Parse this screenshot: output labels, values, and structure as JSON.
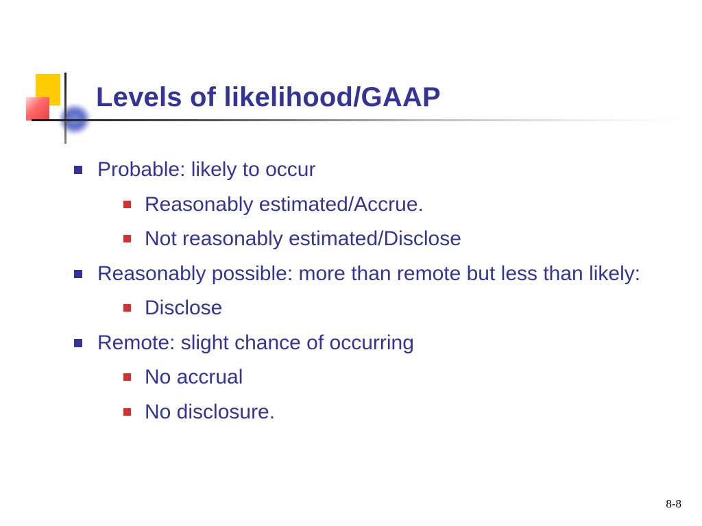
{
  "title": "Levels of likelihood/GAAP",
  "colors": {
    "text": "#333399",
    "title": "#33339a",
    "bullet_level1": "#333399",
    "bullet_level2": "#d63030",
    "background": "#ffffff",
    "accent_yellow": "#ffcc00",
    "accent_red": "#e83e3e",
    "accent_blue": "#5a6bc6"
  },
  "typography": {
    "title_fontsize": 40,
    "title_weight": "bold",
    "body_fontsize": 30,
    "font_family": "Verdana"
  },
  "items": {
    "l1_0": "Probable: likely to occur",
    "l1_0_sub": {
      "s0": "Reasonably estimated/Accrue.",
      "s1": "Not reasonably estimated/Disclose"
    },
    "l1_1": "Reasonably possible: more than remote but less than likely:",
    "l1_1_sub": {
      "s0": "Disclose"
    },
    "l1_2": "Remote: slight chance of occurring",
    "l1_2_sub": {
      "s0": "No accrual",
      "s1": "No disclosure."
    }
  },
  "page_number": "8-8"
}
